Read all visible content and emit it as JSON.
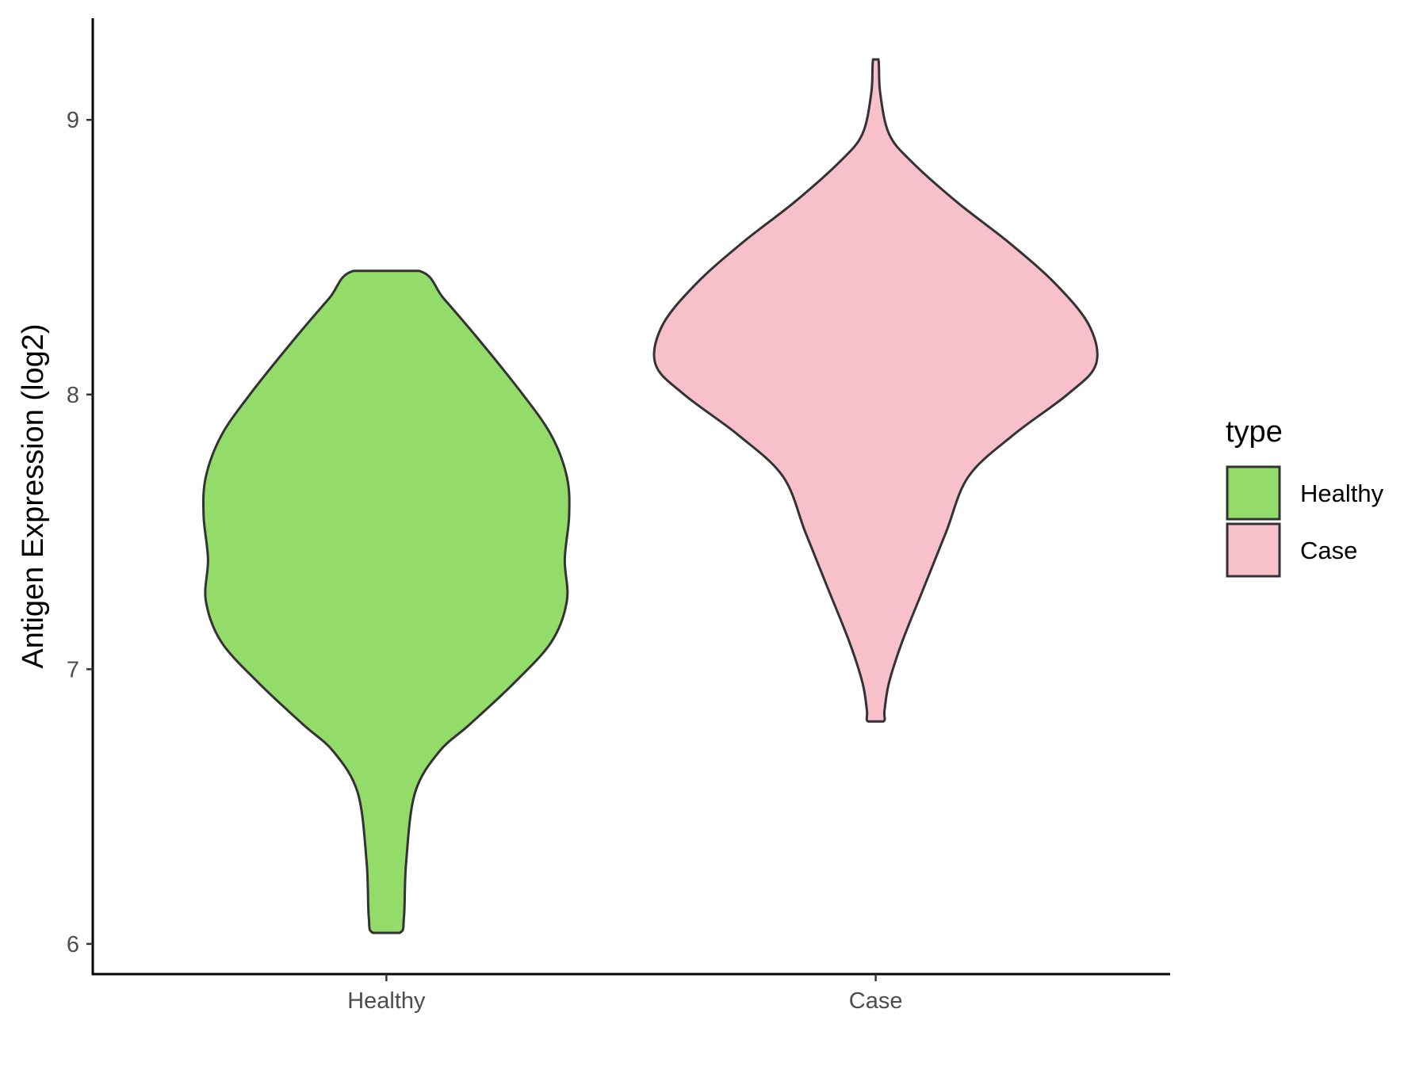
{
  "chart_data": {
    "type": "violin",
    "ylabel": "Antigen Expression (log2)",
    "xlabel": "",
    "categories": [
      "Healthy",
      "Case"
    ],
    "y_ticks": [
      6,
      7,
      8,
      9
    ],
    "ylim": [
      5.89,
      9.37
    ],
    "grid": false,
    "legend": {
      "title": "type",
      "position": "right",
      "entries": [
        {
          "label": "Healthy",
          "color": "#93dc6a"
        },
        {
          "label": "Case",
          "color": "#f7c0cb"
        }
      ]
    },
    "series": [
      {
        "name": "Healthy",
        "color": "#93dc6a",
        "min": 6.04,
        "max": 8.45,
        "profile": [
          [
            8.45,
            0.15
          ],
          [
            8.35,
            0.26
          ],
          [
            8.2,
            0.42
          ],
          [
            8.0,
            0.62
          ],
          [
            7.85,
            0.75
          ],
          [
            7.7,
            0.82
          ],
          [
            7.56,
            0.83
          ],
          [
            7.4,
            0.81
          ],
          [
            7.25,
            0.82
          ],
          [
            7.1,
            0.75
          ],
          [
            6.95,
            0.58
          ],
          [
            6.8,
            0.38
          ],
          [
            6.7,
            0.24
          ],
          [
            6.55,
            0.13
          ],
          [
            6.3,
            0.09
          ],
          [
            6.1,
            0.08
          ],
          [
            6.04,
            0.06
          ]
        ]
      },
      {
        "name": "Case",
        "color": "#f7c0cb",
        "min": 6.81,
        "max": 9.22,
        "profile": [
          [
            9.22,
            0.012
          ],
          [
            9.1,
            0.02
          ],
          [
            8.95,
            0.06
          ],
          [
            8.85,
            0.16
          ],
          [
            8.7,
            0.37
          ],
          [
            8.55,
            0.61
          ],
          [
            8.4,
            0.82
          ],
          [
            8.25,
            0.97
          ],
          [
            8.11,
            1.0
          ],
          [
            8.0,
            0.87
          ],
          [
            7.85,
            0.62
          ],
          [
            7.7,
            0.42
          ],
          [
            7.5,
            0.32
          ],
          [
            7.3,
            0.22
          ],
          [
            7.1,
            0.12
          ],
          [
            6.95,
            0.06
          ],
          [
            6.85,
            0.04
          ],
          [
            6.81,
            0.035
          ]
        ]
      }
    ]
  }
}
